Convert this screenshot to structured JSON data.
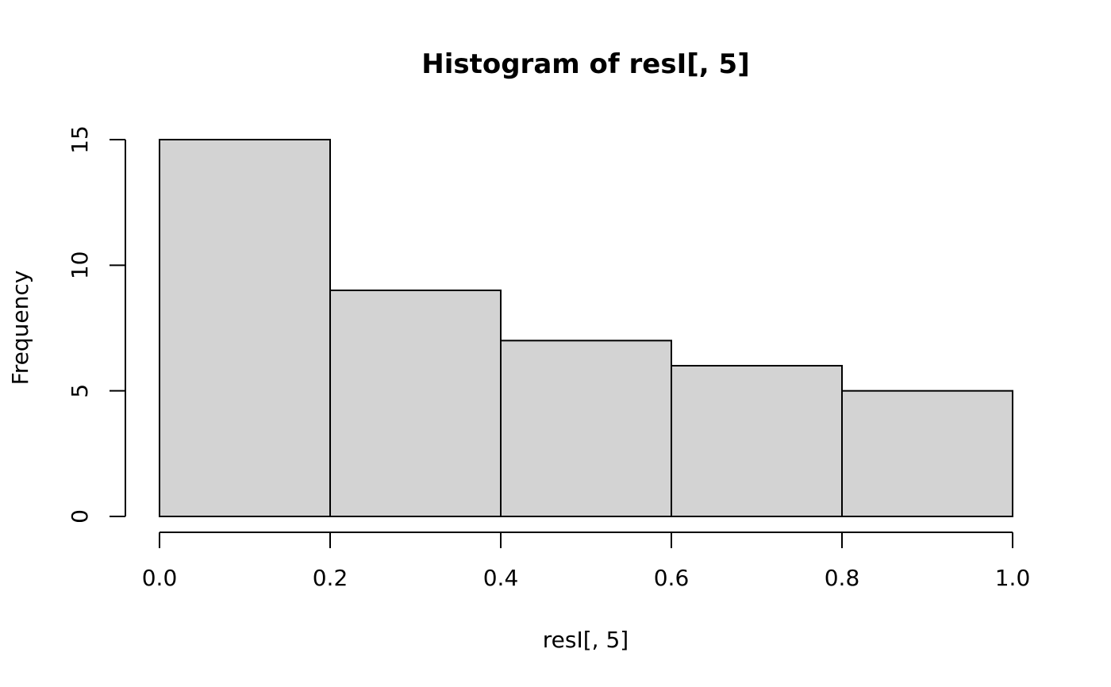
{
  "chart_data": {
    "type": "bar",
    "title": "Histogram of resI[, 5]",
    "xlabel": "resI[, 5]",
    "ylabel": "Frequency",
    "bins": [
      {
        "start": 0.0,
        "end": 0.2,
        "count": 15
      },
      {
        "start": 0.2,
        "end": 0.4,
        "count": 9
      },
      {
        "start": 0.4,
        "end": 0.6,
        "count": 7
      },
      {
        "start": 0.6,
        "end": 0.8,
        "count": 6
      },
      {
        "start": 0.8,
        "end": 1.0,
        "count": 5
      }
    ],
    "xlim": [
      0.0,
      1.0
    ],
    "ylim": [
      0,
      15
    ],
    "x_ticks": [
      0.0,
      0.2,
      0.4,
      0.6,
      0.8,
      1.0
    ],
    "x_tick_labels": [
      "0.0",
      "0.2",
      "0.4",
      "0.6",
      "0.8",
      "1.0"
    ],
    "y_ticks": [
      0,
      5,
      10,
      15
    ],
    "y_tick_labels": [
      "0",
      "5",
      "10",
      "15"
    ],
    "bar_fill": "#d3d3d3",
    "bar_stroke": "#000000",
    "grid": false
  }
}
